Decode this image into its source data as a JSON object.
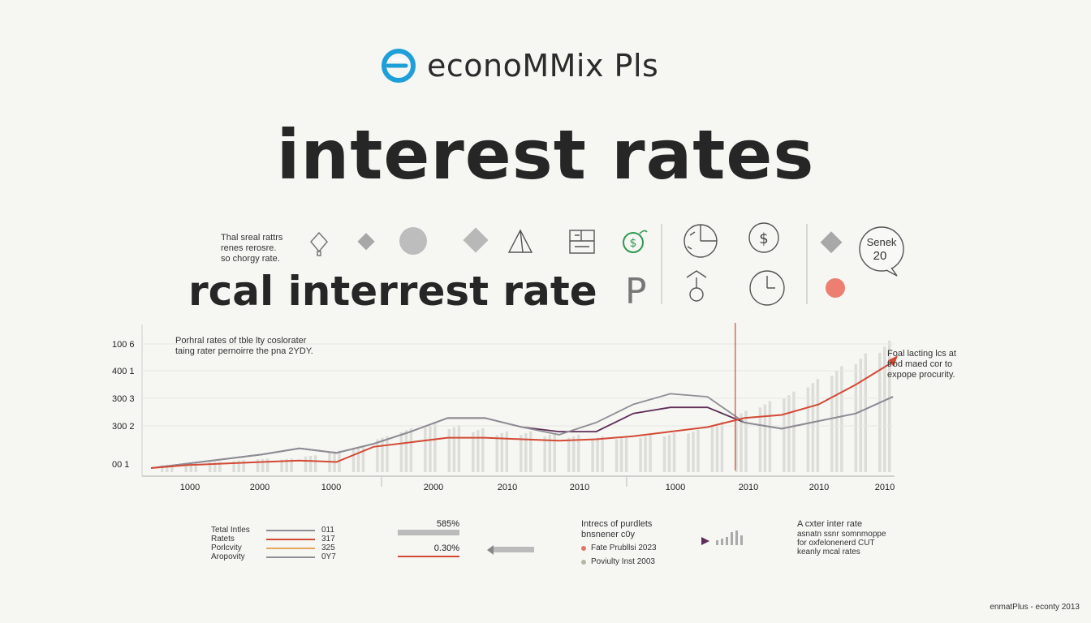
{
  "brand": {
    "name": "econoMMix Pls"
  },
  "title": "interest rates",
  "subtitle": "rcal interrest rate",
  "subtitle_suffix": "P",
  "notes": {
    "top_left": "Thal sreal rattrs\nrenes rerosre.\nso chorgy rate.",
    "chart_top_left": "Porhral rates of tble lty coslorater\ntaing rater pernoirre the pna 2YDY.",
    "chart_right": "Foal lacting lcs at\ntrod maed cor to\nexpope procurity.",
    "badge_line1": "Senek",
    "badge_line2": "20"
  },
  "chart_data": {
    "type": "line",
    "y_tick_labels": [
      "100 6",
      "400 1",
      "300 3",
      "300 2",
      "00 1"
    ],
    "x_tick_labels": [
      "1000",
      "2000",
      "1000",
      "2000",
      "2010",
      "2010",
      "1000",
      "2010",
      "2010",
      "2010"
    ],
    "x": [
      0,
      2,
      4,
      6,
      8,
      10,
      12,
      14,
      16,
      18,
      20,
      22,
      24,
      26,
      28,
      30,
      32,
      34,
      36,
      38,
      40
    ],
    "ylim": [
      0,
      100
    ],
    "series": [
      {
        "color": "#5e2d57",
        "values": [
          0,
          3,
          6,
          9,
          13,
          10,
          16,
          24,
          33,
          33,
          27,
          24,
          24,
          36,
          40,
          40,
          30,
          26,
          31,
          36,
          47
        ]
      },
      {
        "color": "#8e8e94",
        "values": [
          0,
          3,
          6,
          9,
          13,
          10,
          16,
          24,
          33,
          33,
          27,
          22,
          30,
          42,
          49,
          47,
          30,
          26,
          31,
          36,
          47
        ]
      },
      {
        "color": "#d24a35",
        "values": [
          0,
          2,
          3,
          4,
          5,
          4,
          14,
          17,
          20,
          20,
          19,
          18,
          19,
          21,
          24,
          27,
          33,
          35,
          42,
          55,
          70
        ]
      }
    ],
    "bars": [
      2,
      3,
      4,
      5,
      6,
      6,
      8,
      11,
      14,
      20,
      25,
      28,
      27,
      25,
      23,
      23,
      22,
      21,
      20,
      20,
      21,
      22,
      24,
      29,
      36,
      42,
      48,
      56,
      64,
      72,
      80
    ],
    "marker_x": 31.5,
    "annotation_marker": "▲"
  },
  "legend": {
    "left": [
      {
        "label": "Tetal Intles",
        "value": "011",
        "color": "#8e8e94"
      },
      {
        "label": "Ratets",
        "value": "317",
        "color": "#d24a35"
      },
      {
        "label": "Porlcvity",
        "value": "325",
        "color": "#e2a85e"
      },
      {
        "label": "Aropovity",
        "value": "0Y7",
        "color": "#8e8e94"
      }
    ],
    "bar1_label": "585%",
    "bar2_label": "0.30%",
    "mid_title": "Intrecs of purdlets\nbnsnener c0y",
    "mid_items": [
      {
        "label": "Fate Prubllsi 2023",
        "color": "#e0756a"
      },
      {
        "label": "Poviulty Inst 2003",
        "color": "#b6b6a2"
      }
    ],
    "right_title": "A cxter inter rate",
    "right_text": "asnatn ssnr somnmoppe\nfor oxfelonenerd CUT\nkeanly mcal rates"
  },
  "footer": "enmatPlus - econty 2013",
  "icons": [
    "lightbulb-icon",
    "diamond-icon",
    "circle-icon",
    "diamond-icon",
    "pyramid-icon",
    "document-icon",
    "dollar-leaf-icon",
    "pie-chart-icon",
    "dollar-icon",
    "badge-icon",
    "clock-icon",
    "diamond-icon",
    "dot-icon",
    "speech-bubble-icon"
  ],
  "colors": {
    "accent_blue": "#1f9fd9",
    "accent_red": "#d24a35",
    "accent_purple": "#5e2d57",
    "dot": "#ec7f70"
  }
}
